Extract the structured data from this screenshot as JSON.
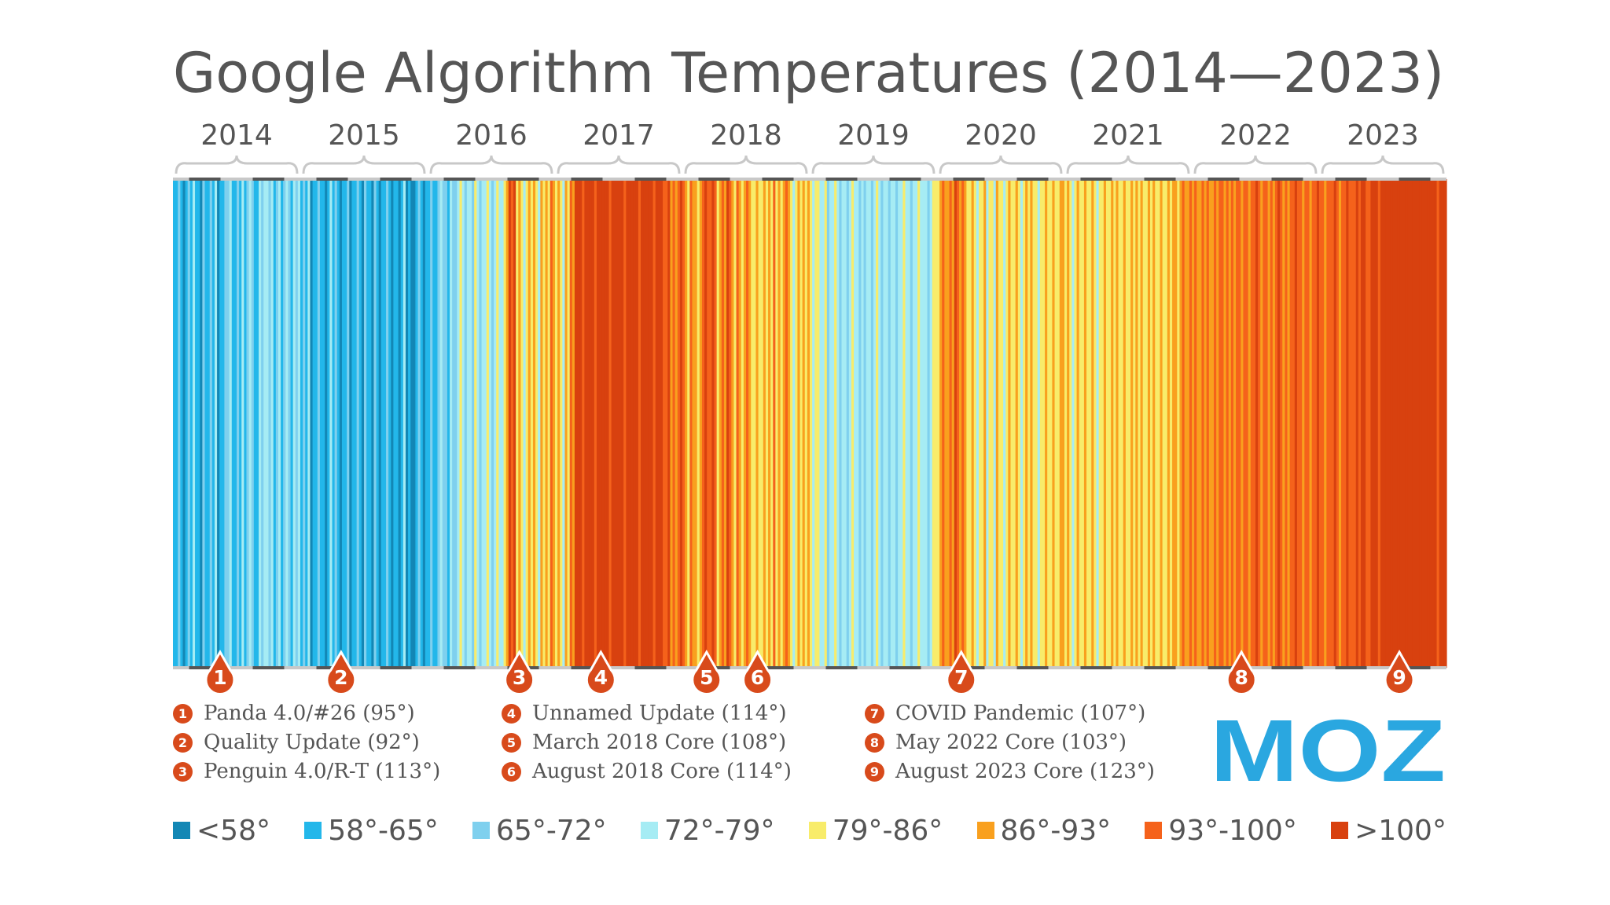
{
  "chart_data": {
    "type": "heatmap",
    "title": "Google Algorithm Temperatures (2014—2023)",
    "years": [
      "2014",
      "2015",
      "2016",
      "2017",
      "2018",
      "2019",
      "2020",
      "2021",
      "2022",
      "2023"
    ],
    "bins": [
      {
        "label": "<58°",
        "color": "#1387b5"
      },
      {
        "label": "58°-65°",
        "color": "#23b7ea"
      },
      {
        "label": "65°-72°",
        "color": "#7fd0ee"
      },
      {
        "label": "72°-79°",
        "color": "#a6ecf4"
      },
      {
        "label": "79°-86°",
        "color": "#f8ec6a"
      },
      {
        "label": "86°-93°",
        "color": "#f9a01e"
      },
      {
        "label": "93°-100°",
        "color": "#f5621b"
      },
      {
        "label": ">100°",
        "color": "#d8410f"
      }
    ],
    "yearly_bin_sequence": [
      [
        1,
        1,
        2,
        1,
        0,
        1,
        2,
        1,
        3,
        1,
        1,
        0,
        2,
        1,
        1,
        2,
        1,
        3,
        0,
        1,
        1,
        2,
        2,
        3,
        1,
        1,
        2,
        1,
        3,
        1,
        2,
        3,
        2,
        1,
        1,
        3,
        2,
        3,
        3,
        2,
        3,
        1,
        2,
        3,
        1,
        2,
        3,
        2,
        1,
        3,
        2,
        3
      ],
      [
        1,
        2,
        1,
        3,
        0,
        1,
        1,
        2,
        1,
        1,
        0,
        1,
        3,
        1,
        2,
        1,
        0,
        1,
        1,
        2,
        0,
        1,
        1,
        2,
        1,
        0,
        2,
        1,
        1,
        0,
        2,
        1,
        0,
        1,
        1,
        2,
        1,
        0,
        1,
        1,
        0,
        1,
        3,
        0,
        1,
        0,
        0,
        1,
        2,
        1,
        0,
        1
      ],
      [
        1,
        2,
        1,
        1,
        2,
        3,
        2,
        2,
        1,
        3,
        2,
        2,
        3,
        4,
        3,
        2,
        3,
        3,
        2,
        4,
        3,
        2,
        3,
        3,
        4,
        3,
        2,
        3,
        4,
        3,
        3,
        4,
        5,
        7,
        6,
        7,
        4,
        5,
        4,
        3,
        4,
        5,
        4,
        5,
        4,
        3,
        5,
        4,
        5,
        4,
        6,
        5
      ],
      [
        4,
        5,
        4,
        3,
        5,
        4,
        6,
        5,
        7,
        7,
        7,
        6,
        7,
        7,
        7,
        7,
        6,
        7,
        7,
        7,
        7,
        7,
        6,
        7,
        7,
        7,
        7,
        7,
        6,
        7,
        7,
        7,
        7,
        7,
        6,
        7,
        7,
        7,
        7,
        7,
        6,
        7,
        7,
        7,
        6,
        6,
        7,
        5,
        6,
        5,
        6,
        7
      ],
      [
        6,
        5,
        4,
        6,
        5,
        5,
        4,
        5,
        6,
        7,
        6,
        6,
        7,
        6,
        4,
        5,
        6,
        5,
        7,
        6,
        5,
        4,
        6,
        5,
        4,
        5,
        6,
        5,
        4,
        4,
        5,
        4,
        4,
        5,
        4,
        5,
        4,
        6,
        4,
        5,
        4,
        5,
        6,
        5,
        4,
        3,
        4,
        5,
        4,
        5,
        4,
        5
      ],
      [
        4,
        3,
        4,
        4,
        3,
        3,
        4,
        2,
        3,
        3,
        4,
        3,
        2,
        3,
        3,
        2,
        3,
        4,
        3,
        3,
        2,
        3,
        2,
        3,
        3,
        2,
        3,
        4,
        3,
        2,
        3,
        3,
        2,
        3,
        3,
        2,
        3,
        3,
        4,
        3,
        3,
        2,
        3,
        3,
        4,
        3,
        3,
        3,
        2,
        3,
        4,
        4
      ],
      [
        4,
        5,
        6,
        5,
        5,
        6,
        5,
        7,
        6,
        5,
        6,
        5,
        4,
        4,
        5,
        4,
        3,
        4,
        4,
        5,
        3,
        4,
        4,
        3,
        5,
        4,
        4,
        3,
        4,
        5,
        4,
        4,
        5,
        4,
        3,
        4,
        5,
        4,
        5,
        4,
        4,
        3,
        4,
        4,
        5,
        4,
        4,
        5,
        4,
        4,
        5,
        5
      ],
      [
        4,
        5,
        4,
        3,
        4,
        5,
        4,
        4,
        5,
        4,
        4,
        5,
        4,
        3,
        4,
        4,
        5,
        4,
        4,
        5,
        4,
        5,
        4,
        4,
        5,
        4,
        4,
        5,
        4,
        5,
        4,
        5,
        4,
        4,
        5,
        4,
        5,
        4,
        4,
        5,
        4,
        4,
        5,
        4,
        5,
        5,
        4,
        5,
        6,
        5,
        5,
        6
      ],
      [
        5,
        6,
        5,
        5,
        6,
        5,
        6,
        5,
        5,
        6,
        5,
        6,
        6,
        5,
        6,
        5,
        6,
        5,
        6,
        6,
        5,
        6,
        6,
        5,
        6,
        6,
        7,
        6,
        5,
        6,
        6,
        5,
        6,
        5,
        6,
        7,
        6,
        5,
        6,
        5,
        6,
        6,
        7,
        6,
        6,
        5,
        6,
        6,
        5,
        6,
        6,
        7
      ],
      [
        6,
        6,
        5,
        6,
        6,
        6,
        7,
        6,
        5,
        6,
        6,
        7,
        6,
        6,
        6,
        7,
        6,
        7,
        7,
        6,
        6,
        7,
        7,
        7,
        6,
        7,
        7,
        7,
        7,
        7,
        7,
        7,
        7,
        7,
        7,
        7,
        7,
        7,
        7,
        7,
        7,
        7,
        7,
        7,
        7,
        7,
        7,
        7,
        6,
        7,
        7,
        7
      ]
    ],
    "events": [
      {
        "id": "1",
        "date": 2014.37,
        "label": "Panda 4.0/#26 (95°)"
      },
      {
        "id": "2",
        "date": 2015.32,
        "label": "Quality Update (92°)"
      },
      {
        "id": "3",
        "date": 2016.72,
        "label": "Penguin 4.0/R-T (113°)"
      },
      {
        "id": "4",
        "date": 2017.36,
        "label": "Unnamed Update (114°)"
      },
      {
        "id": "5",
        "date": 2018.19,
        "label": "March 2018 Core (108°)"
      },
      {
        "id": "6",
        "date": 2018.59,
        "label": "August 2018 Core (114°)"
      },
      {
        "id": "7",
        "date": 2020.19,
        "label": "COVID Pandemic (107°)"
      },
      {
        "id": "8",
        "date": 2022.39,
        "label": "May 2022 Core (103°)"
      },
      {
        "id": "9",
        "date": 2023.63,
        "label": "August 2023 Core (123°)"
      }
    ]
  },
  "legend": {
    "groups": [
      [
        {
          "id": "1",
          "text": "Panda 4.0/#26 (95°)"
        },
        {
          "id": "2",
          "text": "Quality Update (92°)"
        },
        {
          "id": "3",
          "text": "Penguin 4.0/R-T (113°)"
        }
      ],
      [
        {
          "id": "4",
          "text": "Unnamed Update (114°)"
        },
        {
          "id": "5",
          "text": "March 2018 Core (108°)"
        },
        {
          "id": "6",
          "text": "August 2018 Core (114°)"
        }
      ],
      [
        {
          "id": "7",
          "text": "COVID Pandemic (107°)"
        },
        {
          "id": "8",
          "text": "May 2022 Core (103°)"
        },
        {
          "id": "9",
          "text": "August 2023 Core (123°)"
        }
      ]
    ]
  },
  "brand": {
    "logo_text": "MOZ",
    "logo_color": "#2aa7e0"
  },
  "colors": {
    "text": "#555555",
    "marker": "#d84a1b"
  }
}
